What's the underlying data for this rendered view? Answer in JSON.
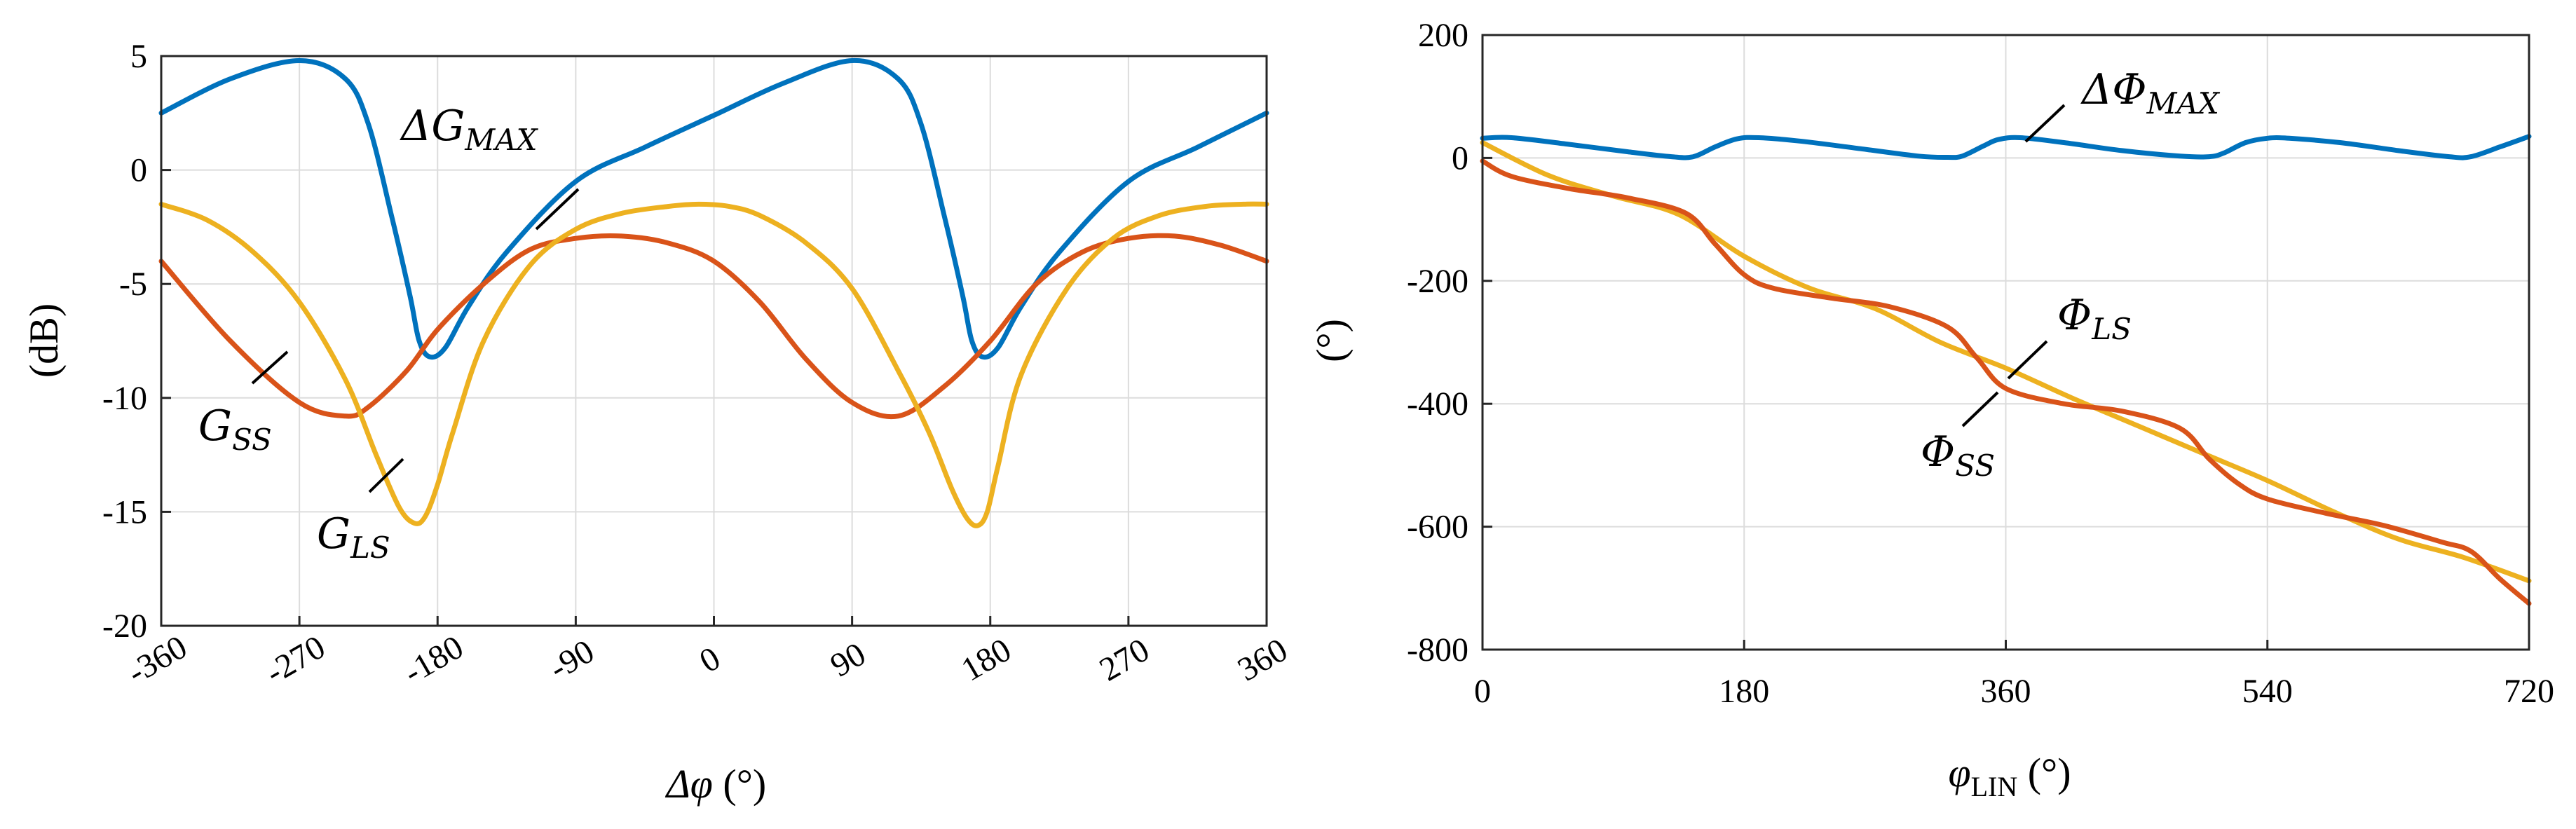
{
  "colors": {
    "blue": "#0072BD",
    "orange": "#D95319",
    "yellow": "#EDB120",
    "grid": "#dcdcdc"
  },
  "chart_data": [
    {
      "type": "line",
      "ylabel": "(dB)",
      "xlabel_symbol": "Δφ",
      "xlabel_unit": "(°)",
      "xlim": [
        -360,
        360
      ],
      "ylim": [
        -20,
        5
      ],
      "xticks": [
        -360,
        -270,
        -180,
        -90,
        0,
        90,
        180,
        270,
        360
      ],
      "yticks": [
        5,
        0,
        -5,
        -10,
        -15,
        -20
      ],
      "xtick_labels": [
        "-360",
        "-270",
        "-180",
        "-90",
        "0",
        "90",
        "180",
        "270",
        "360"
      ],
      "ytick_labels": [
        "5",
        "0",
        "-5",
        "-10",
        "-15",
        "-20"
      ],
      "grid": true,
      "series": [
        {
          "name": "ΔG_MAX",
          "color": "blue",
          "x": [
            -360,
            -315,
            -270,
            -240,
            -225,
            -210,
            -198,
            -192,
            -185,
            -175,
            -160,
            -135,
            -90,
            -45,
            0,
            45,
            90,
            120,
            135,
            150,
            162,
            168,
            175,
            185,
            200,
            225,
            270,
            315,
            360
          ],
          "y": [
            2.5,
            4.0,
            4.8,
            4.0,
            2.0,
            -2.0,
            -5.5,
            -7.5,
            -8.2,
            -7.8,
            -6.0,
            -3.6,
            -0.5,
            1.0,
            2.4,
            3.8,
            4.8,
            4.0,
            2.0,
            -2.0,
            -5.5,
            -7.5,
            -8.2,
            -7.8,
            -6.0,
            -3.6,
            -0.5,
            1.0,
            2.5
          ]
        },
        {
          "name": "G_SS",
          "color": "orange",
          "x": [
            -360,
            -315,
            -270,
            -240,
            -225,
            -200,
            -180,
            -150,
            -120,
            -90,
            -60,
            -30,
            0,
            30,
            60,
            90,
            120,
            150,
            180,
            210,
            240,
            270,
            300,
            330,
            360
          ],
          "y": [
            -4.0,
            -7.5,
            -10.2,
            -10.8,
            -10.4,
            -8.8,
            -7.0,
            -5.0,
            -3.5,
            -3.0,
            -2.9,
            -3.2,
            -4.0,
            -5.8,
            -8.3,
            -10.2,
            -10.8,
            -9.5,
            -7.5,
            -5.0,
            -3.6,
            -3.0,
            -2.9,
            -3.3,
            -4.0
          ]
        },
        {
          "name": "G_LS",
          "color": "yellow",
          "x": [
            -360,
            -330,
            -300,
            -270,
            -240,
            -220,
            -205,
            -195,
            -188,
            -180,
            -170,
            -150,
            -120,
            -90,
            -60,
            -30,
            -10,
            10,
            30,
            60,
            90,
            120,
            140,
            155,
            165,
            172,
            178,
            185,
            200,
            230,
            260,
            290,
            320,
            345,
            360
          ],
          "y": [
            -1.5,
            -2.2,
            -3.6,
            -5.8,
            -9.2,
            -12.5,
            -14.8,
            -15.5,
            -15.2,
            -13.8,
            -11.5,
            -7.5,
            -4.2,
            -2.6,
            -1.9,
            -1.6,
            -1.5,
            -1.6,
            -2.0,
            -3.2,
            -5.2,
            -8.8,
            -11.5,
            -14.0,
            -15.3,
            -15.6,
            -15.0,
            -13.0,
            -9.0,
            -5.2,
            -3.0,
            -2.0,
            -1.6,
            -1.5,
            -1.5
          ]
        }
      ],
      "annotations": [
        {
          "series": "ΔG_MAX",
          "base": "ΔG",
          "sub": "MAX"
        },
        {
          "series": "G_SS",
          "base": "G",
          "sub": "SS"
        },
        {
          "series": "G_LS",
          "base": "G",
          "sub": "LS"
        }
      ]
    },
    {
      "type": "line",
      "ylabel": "(°)",
      "xlabel_symbol": "φ",
      "xlabel_sub": "LIN",
      "xlabel_unit": "(°)",
      "xlim": [
        0,
        720
      ],
      "ylim": [
        -800,
        200
      ],
      "xticks": [
        0,
        180,
        360,
        540,
        720
      ],
      "yticks": [
        200,
        0,
        -200,
        -400,
        -600,
        -800
      ],
      "xtick_labels": [
        "0",
        "180",
        "360",
        "540",
        "720"
      ],
      "ytick_labels": [
        "200",
        "0",
        "-200",
        "-400",
        "-600",
        "-800"
      ],
      "grid": true,
      "series": [
        {
          "name": "ΔΦ_MAX",
          "color": "blue",
          "x": [
            0,
            20,
            60,
            100,
            130,
            145,
            160,
            175,
            190,
            220,
            260,
            300,
            320,
            330,
            345,
            355,
            370,
            400,
            440,
            480,
            500,
            510,
            525,
            540,
            555,
            590,
            630,
            665,
            680,
            700,
            720
          ],
          "y": [
            32,
            33,
            22,
            10,
            2,
            2,
            18,
            31,
            33,
            27,
            15,
            3,
            1,
            3,
            20,
            30,
            33,
            25,
            12,
            3,
            2,
            8,
            25,
            32,
            32,
            25,
            12,
            2,
            2,
            18,
            35
          ]
        },
        {
          "name": "Φ_LS",
          "color": "yellow",
          "x": [
            0,
            45,
            90,
            135,
            180,
            225,
            270,
            315,
            360,
            405,
            450,
            495,
            540,
            585,
            630,
            675,
            720
          ],
          "y": [
            25,
            -28,
            -62,
            -92,
            -160,
            -212,
            -245,
            -300,
            -342,
            -390,
            -435,
            -480,
            -525,
            -575,
            -620,
            -650,
            -688
          ]
        },
        {
          "name": "Φ_SS",
          "color": "orange",
          "x": [
            0,
            20,
            60,
            100,
            140,
            160,
            180,
            200,
            240,
            280,
            320,
            340,
            360,
            400,
            440,
            480,
            500,
            520,
            540,
            580,
            620,
            660,
            680,
            700,
            720
          ],
          "y": [
            -5,
            -30,
            -50,
            -65,
            -90,
            -140,
            -190,
            -212,
            -228,
            -242,
            -275,
            -325,
            -375,
            -400,
            -412,
            -440,
            -490,
            -530,
            -555,
            -578,
            -598,
            -625,
            -640,
            -685,
            -725
          ]
        }
      ],
      "annotations": [
        {
          "series": "ΔΦ_MAX",
          "base": "ΔΦ",
          "sub": "MAX"
        },
        {
          "series": "Φ_LS",
          "base": "Φ",
          "sub": "LS"
        },
        {
          "series": "Φ_SS",
          "base": "Φ",
          "sub": "SS"
        }
      ]
    }
  ]
}
